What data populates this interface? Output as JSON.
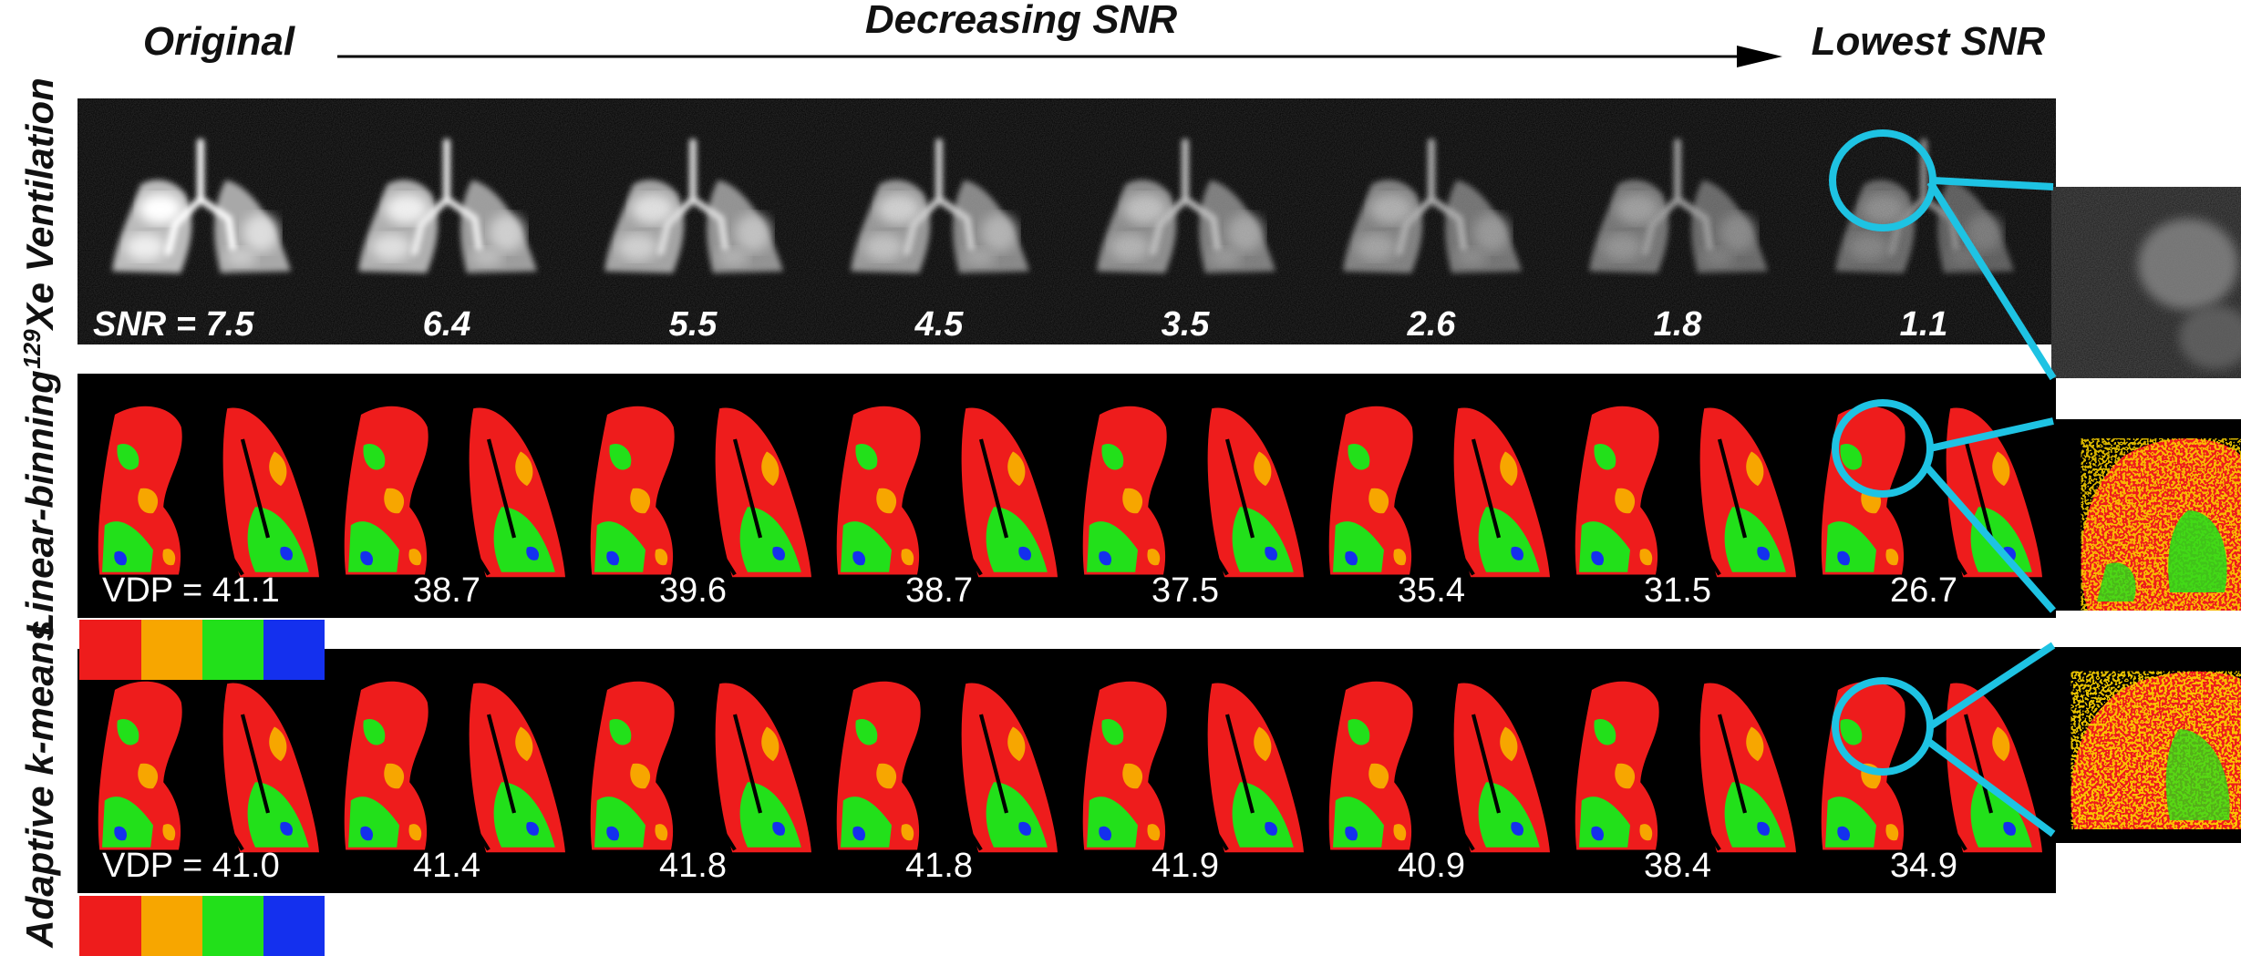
{
  "header": {
    "original": "Original",
    "decreasing": "Decreasing SNR",
    "lowest": "Lowest SNR"
  },
  "rows": {
    "ventilation": {
      "label_sup": "129",
      "label": "Xe Ventilation",
      "values": [
        "SNR = 7.5",
        "6.4",
        "5.5",
        "4.5",
        "3.5",
        "2.6",
        "1.8",
        "1.1"
      ]
    },
    "linear": {
      "label": "Linear-binning",
      "values": [
        "VDP = 41.1",
        "38.7",
        "39.6",
        "38.7",
        "37.5",
        "35.4",
        "31.5",
        "26.7"
      ]
    },
    "kmeans": {
      "label": "Adaptive k-means",
      "values": [
        "VDP = 41.0",
        "41.4",
        "41.8",
        "41.8",
        "41.9",
        "40.9",
        "38.4",
        "34.9"
      ]
    }
  },
  "colors": {
    "defect_red": "#ee1c1c",
    "low_orange": "#f7a600",
    "normal_green": "#22e01a",
    "high_blue": "#1430ee",
    "highlight_cyan": "#1ec3e3",
    "panel_black": "#000000"
  },
  "colorbar_classes": [
    "defect-red",
    "low-orange",
    "normal-green",
    "high-blue"
  ],
  "icons": {
    "arrow": "right-arrow-icon"
  }
}
